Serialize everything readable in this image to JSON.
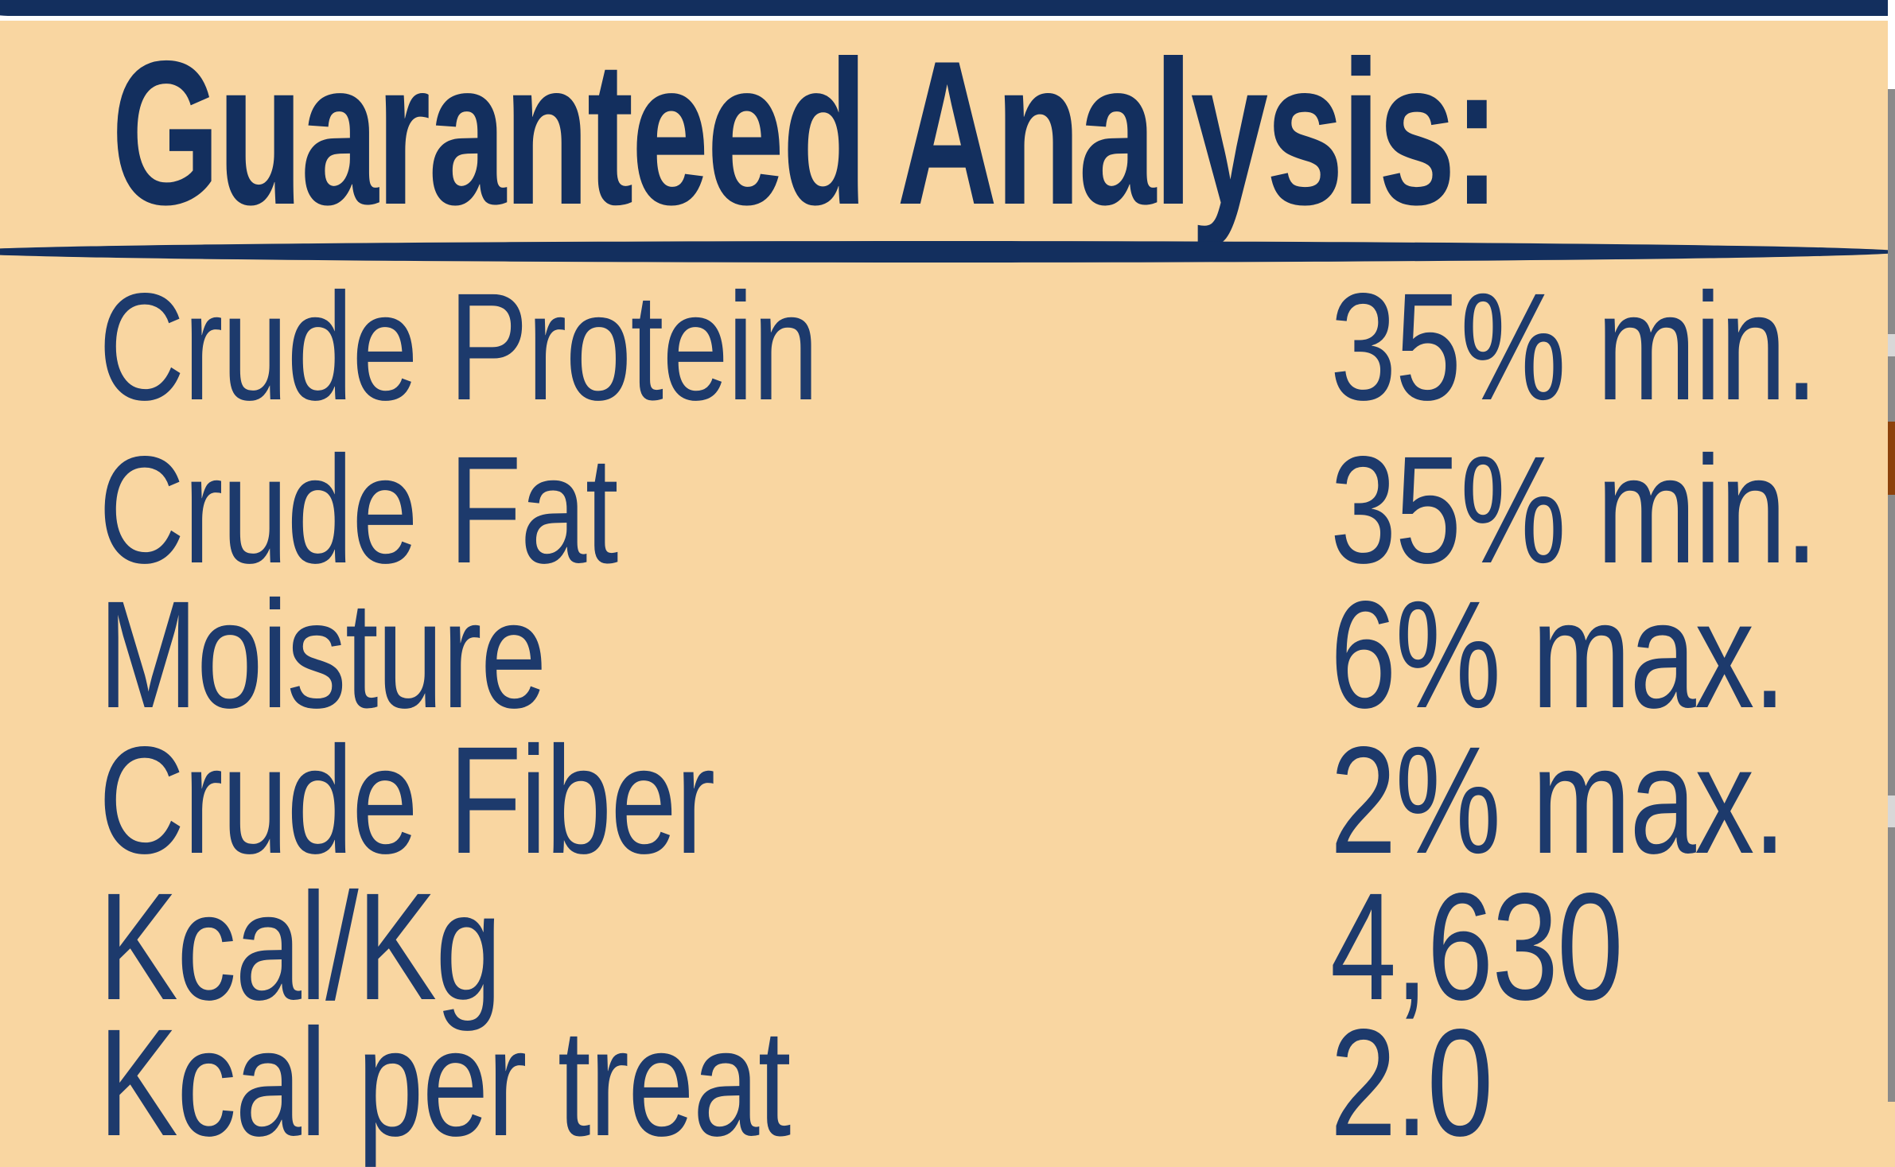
{
  "panel": {
    "title": "Guaranteed Analysis:",
    "rows": [
      {
        "label": "Crude Protein",
        "value": "35% min."
      },
      {
        "label": "Crude Fat",
        "value": "35% min."
      },
      {
        "label": "Moisture",
        "value": "6% max."
      },
      {
        "label": "Crude Fiber",
        "value": "2% max."
      },
      {
        "label": "Kcal/Kg",
        "value": "4,630"
      },
      {
        "label": "Kcal per treat",
        "value": "2.0"
      }
    ]
  },
  "theme": {
    "bg": "#f9d6a1",
    "ink": "#1d3a6c",
    "ink-dark": "#132f5e",
    "edge-gray": "#8a8a8a",
    "edge-brown": "#8c420c",
    "edge-light": "#d8d8d8"
  }
}
